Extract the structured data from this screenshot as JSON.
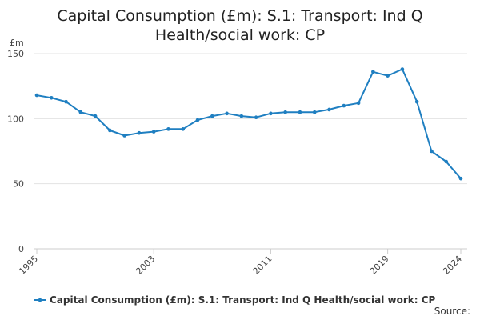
{
  "title_lines": [
    "Capital Consumption (£m): S.1: Transport: Ind Q",
    "Health/social work: CP"
  ],
  "source_label": "Source:",
  "colors": {
    "series": "#1f7fc1",
    "grid": "#e3e3e3",
    "axis": "#cccccc",
    "text": "#444444"
  },
  "chart_data": {
    "type": "line",
    "title": "Capital Consumption (£m): S.1: Transport: Ind Q Health/social work: CP",
    "ylabel": "£m",
    "xlabel": "",
    "ylim": [
      0,
      150
    ],
    "xlim": [
      1995,
      2024
    ],
    "yticks": [
      0,
      50,
      100,
      150
    ],
    "xticks": [
      "1995",
      "2003",
      "2011",
      "2019",
      "2024"
    ],
    "grid": true,
    "legend": "bottom",
    "series": [
      {
        "name": "Capital Consumption (£m): S.1: Transport: Ind Q Health/social work: CP",
        "x": [
          1995,
          1996,
          1997,
          1998,
          1999,
          2000,
          2001,
          2002,
          2003,
          2004,
          2005,
          2006,
          2007,
          2008,
          2009,
          2010,
          2011,
          2012,
          2013,
          2014,
          2015,
          2016,
          2017,
          2018,
          2019,
          2020,
          2021,
          2022,
          2023,
          2024
        ],
        "values": [
          118,
          116,
          113,
          105,
          102,
          91,
          87,
          89,
          90,
          92,
          92,
          99,
          102,
          104,
          102,
          101,
          104,
          105,
          105,
          105,
          107,
          110,
          112,
          136,
          133,
          138,
          113,
          75,
          67,
          54
        ]
      }
    ]
  }
}
